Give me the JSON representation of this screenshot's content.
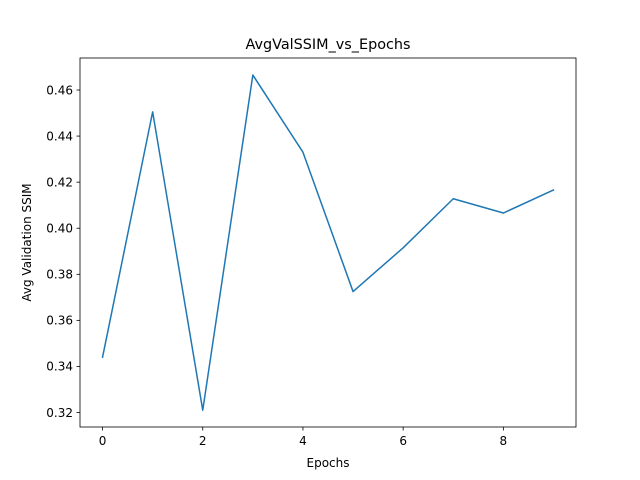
{
  "chart_data": {
    "type": "line",
    "title": "AvgValSSIM_vs_Epochs",
    "xlabel": "Epochs",
    "ylabel": "Avg Validation SSIM",
    "x": [
      0,
      1,
      2,
      3,
      4,
      5,
      6,
      7,
      8,
      9
    ],
    "series": [
      {
        "color": "#1f77b4",
        "values": [
          0.344,
          0.4505,
          0.321,
          0.4665,
          0.433,
          0.3725,
          0.3915,
          0.4128,
          0.4066,
          0.4166
        ]
      }
    ],
    "xlim": [
      -0.45,
      9.45
    ],
    "ylim": [
      0.3137,
      0.4739
    ],
    "xticks": [
      0,
      2,
      4,
      6,
      8
    ],
    "xtick_labels": [
      "0",
      "2",
      "4",
      "6",
      "8"
    ],
    "yticks": [
      0.32,
      0.34,
      0.36,
      0.38,
      0.4,
      0.42,
      0.44,
      0.46
    ],
    "ytick_labels": [
      "0.32",
      "0.34",
      "0.36",
      "0.38",
      "0.40",
      "0.42",
      "0.44",
      "0.46"
    ],
    "grid": false,
    "legend": "none"
  }
}
